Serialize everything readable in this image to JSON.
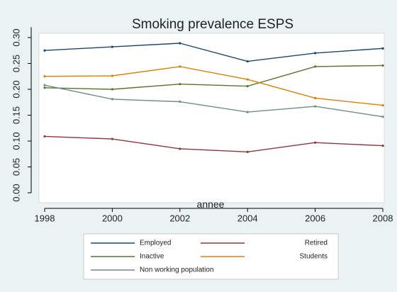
{
  "chart_data": {
    "type": "line",
    "title": "Smoking prevalence ESPS",
    "xlabel": "annee",
    "ylabel": "",
    "x": [
      1998,
      2000,
      2002,
      2004,
      2006,
      2008
    ],
    "xticks": [
      "1998",
      "2000",
      "2002",
      "2004",
      "2006",
      "2008"
    ],
    "xlim": [
      1998,
      2008
    ],
    "ylim": [
      0,
      0.32
    ],
    "yticks": [
      "0.00",
      "0.05",
      "0.10",
      "0.15",
      "0.20",
      "0.25",
      "0.30"
    ],
    "grid": false,
    "legend_position": "bottom",
    "series": [
      {
        "name": "Employed",
        "color": "#1a476f",
        "values": [
          0.275,
          0.282,
          0.289,
          0.254,
          0.27,
          0.279
        ]
      },
      {
        "name": "Retired",
        "color": "#90353b",
        "values": [
          0.109,
          0.104,
          0.085,
          0.079,
          0.097,
          0.091
        ]
      },
      {
        "name": "Inactive",
        "color": "#55752f",
        "values": [
          0.203,
          0.2,
          0.21,
          0.206,
          0.244,
          0.246
        ]
      },
      {
        "name": "Students",
        "color": "#e37e00",
        "values": [
          0.225,
          0.226,
          0.244,
          0.219,
          0.183,
          0.169
        ]
      },
      {
        "name": "Non working population",
        "color": "#6e8e84",
        "values": [
          0.208,
          0.181,
          0.176,
          0.156,
          0.167,
          0.147
        ]
      }
    ],
    "colors": {
      "background": "#eaf2f3",
      "plot_area": "#ffffff"
    }
  }
}
